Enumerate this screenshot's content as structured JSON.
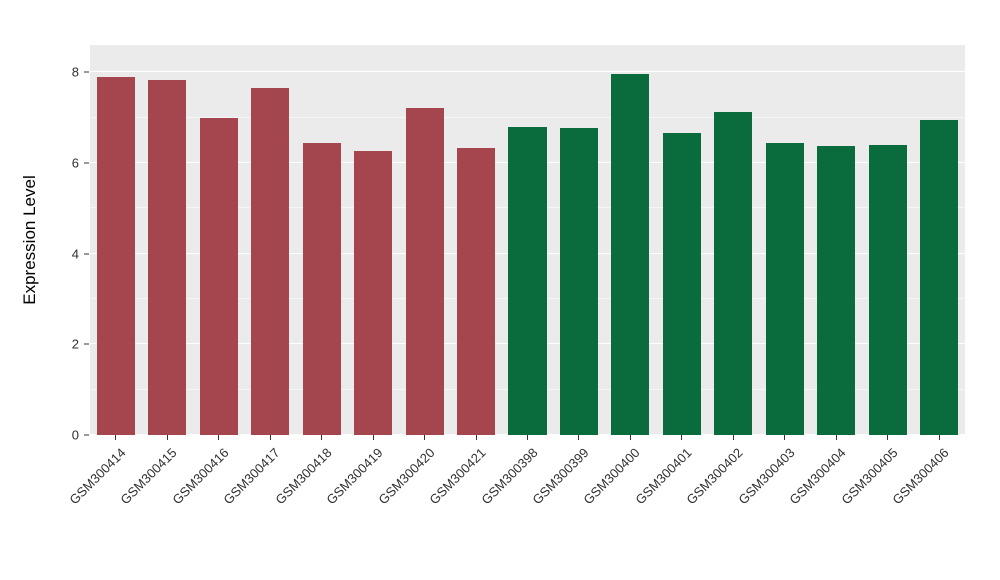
{
  "colors": {
    "page_bg": "#FFFFFF",
    "panel_bg": "#EBEBEB",
    "grid_major": "#FFFFFF",
    "tick_color": "#333333",
    "axis_text_color": "#303030",
    "group1_color": "#A5464F",
    "group2_color": "#0A6B3C"
  },
  "chart_data": {
    "type": "bar",
    "title": "",
    "xlabel": "",
    "ylabel": "Expression Level",
    "ylim": [
      0,
      8.6
    ],
    "yticks": [
      0,
      2,
      4,
      6,
      8
    ],
    "yticks_minor": [
      1,
      3,
      5,
      7
    ],
    "grid": "on",
    "legend": "none",
    "categories": [
      "GSM300414",
      "GSM300415",
      "GSM300416",
      "GSM300417",
      "GSM300418",
      "GSM300419",
      "GSM300420",
      "GSM300421",
      "GSM300398",
      "GSM300399",
      "GSM300400",
      "GSM300401",
      "GSM300402",
      "GSM300403",
      "GSM300404",
      "GSM300405",
      "GSM300406"
    ],
    "values": [
      7.9,
      7.82,
      7.0,
      7.65,
      6.43,
      6.27,
      7.22,
      6.33,
      6.8,
      6.77,
      7.95,
      6.67,
      7.13,
      6.45,
      6.38,
      6.39,
      6.95
    ],
    "groups": [
      "group1",
      "group1",
      "group1",
      "group1",
      "group1",
      "group1",
      "group1",
      "group1",
      "group2",
      "group2",
      "group2",
      "group2",
      "group2",
      "group2",
      "group2",
      "group2",
      "group2"
    ]
  }
}
